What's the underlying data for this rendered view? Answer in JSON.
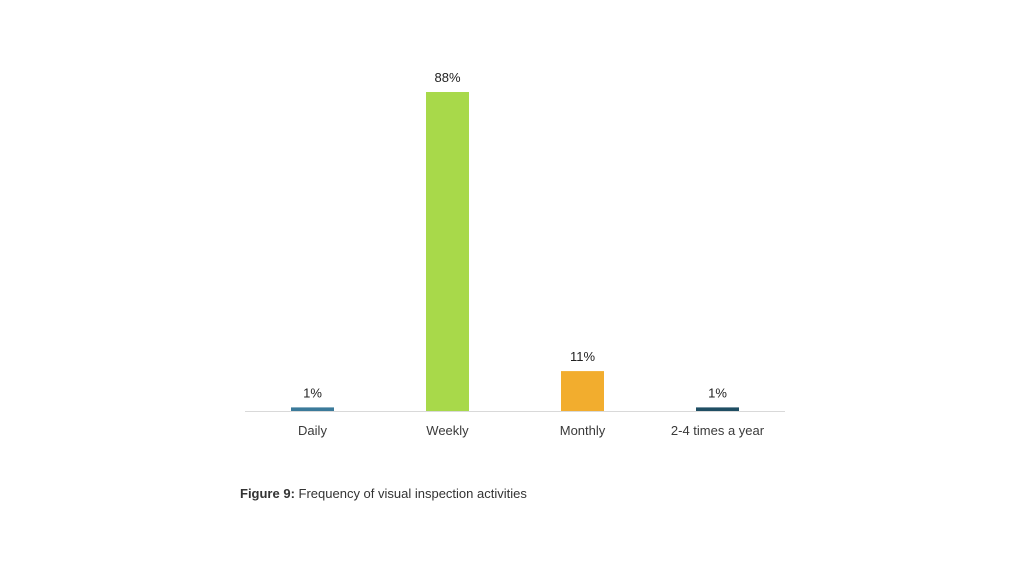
{
  "chart_data": {
    "type": "bar",
    "categories": [
      "Daily",
      "Weekly",
      "Monthly",
      "2-4 times a year"
    ],
    "values": [
      1,
      88,
      11,
      1
    ],
    "value_labels": [
      "1%",
      "88%",
      "11%",
      "1%"
    ],
    "colors": [
      "#3b7a9a",
      "#a8d94a",
      "#f2ad2e",
      "#1f4e63"
    ],
    "unit": "%",
    "ylim": [
      0,
      88
    ],
    "grid": false,
    "legend": "none"
  },
  "caption": {
    "prefix": "Figure 9:",
    "text": " Frequency of visual inspection activities"
  }
}
